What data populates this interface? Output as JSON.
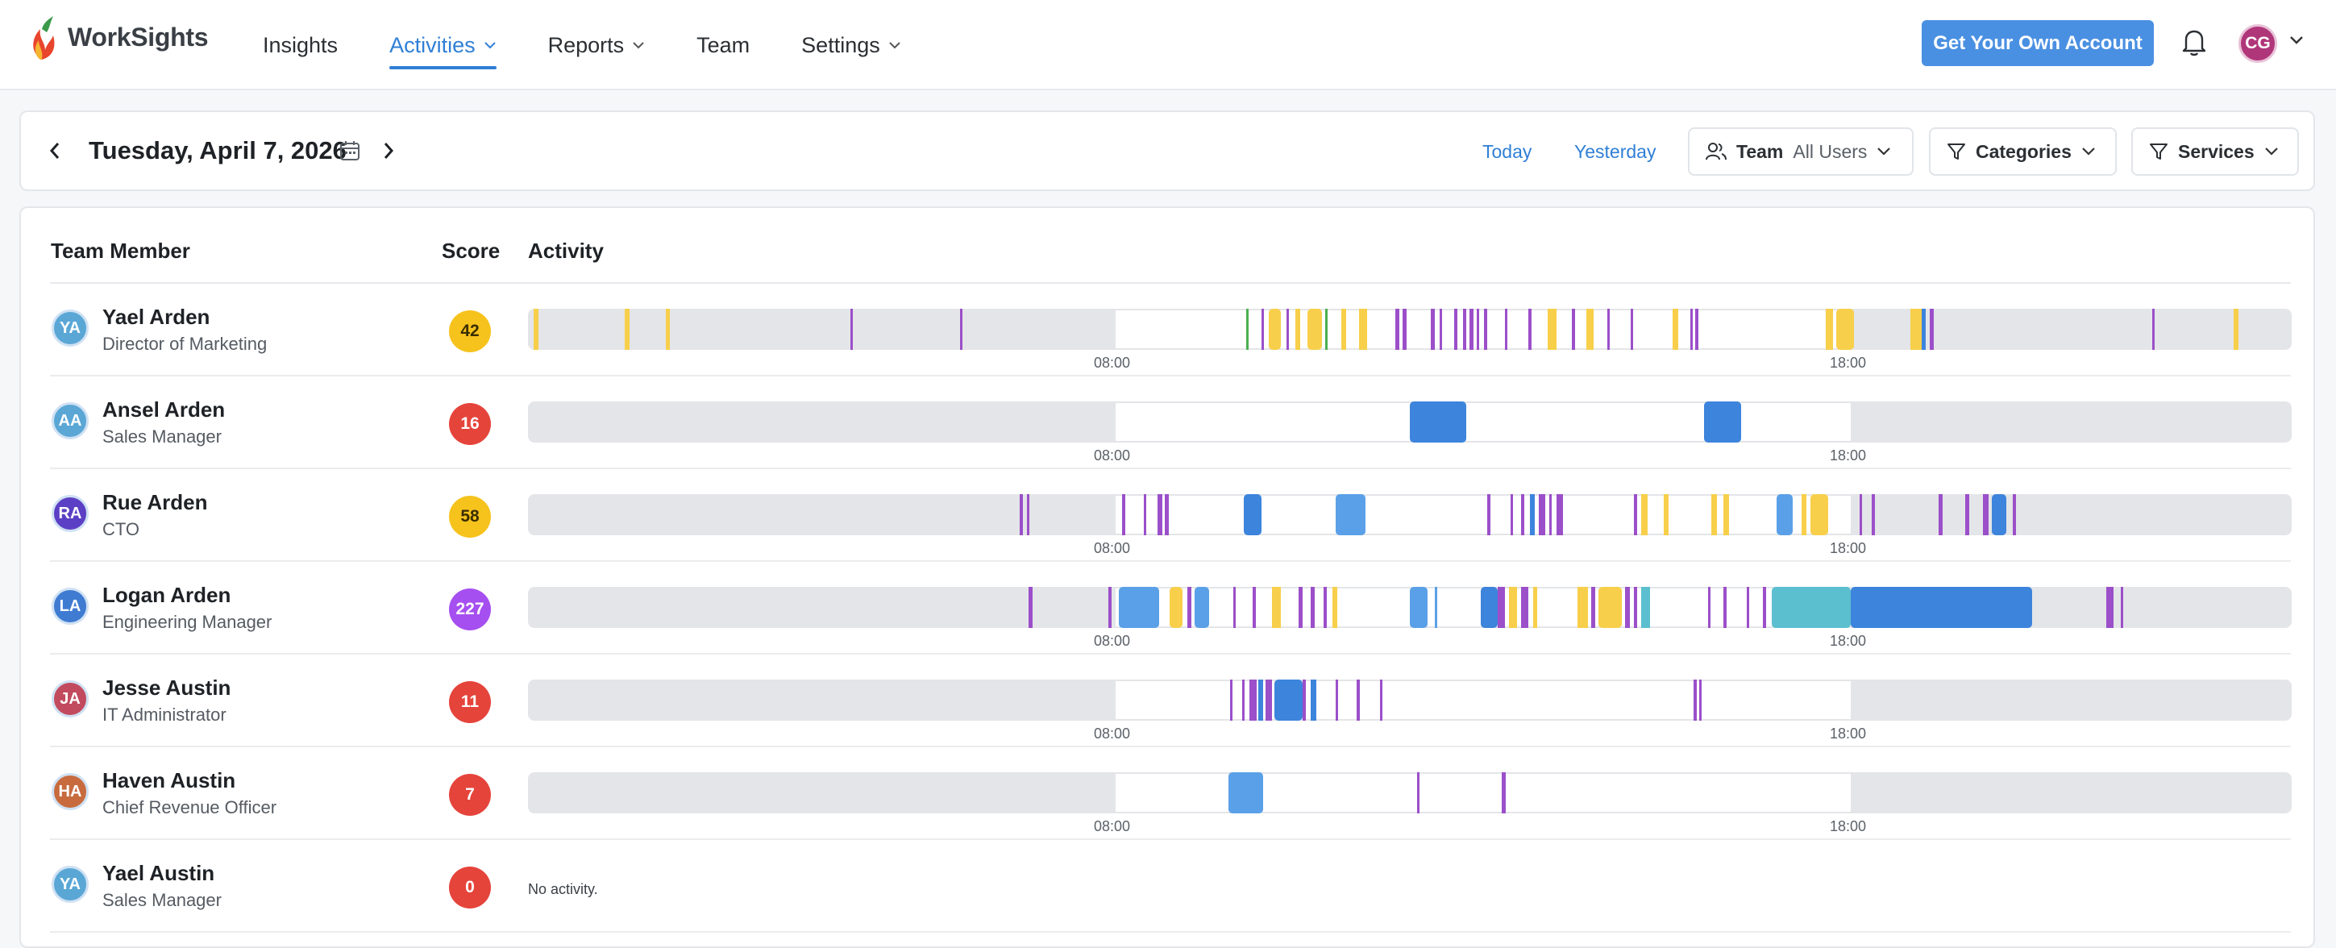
{
  "nav": {
    "brand": "WorkSights",
    "items": [
      {
        "label": "Insights",
        "active": false,
        "dropdown": false
      },
      {
        "label": "Activities",
        "active": true,
        "dropdown": true
      },
      {
        "label": "Reports",
        "active": false,
        "dropdown": true
      },
      {
        "label": "Team",
        "active": false,
        "dropdown": false
      },
      {
        "label": "Settings",
        "active": false,
        "dropdown": true
      }
    ],
    "cta": "Get Your Own Account",
    "user_initials": "CG"
  },
  "datebar": {
    "date": "Tuesday, April 7, 2026",
    "today": "Today",
    "yesterday": "Yesterday",
    "team_label": "Team",
    "team_value": "All Users",
    "categories": "Categories",
    "services": "Services"
  },
  "table": {
    "col_member": "Team Member",
    "col_score": "Score",
    "col_activity": "Activity",
    "tick_start": "08:00",
    "tick_end": "18:00",
    "no_activity": "No activity."
  },
  "colors": {
    "accent": "#2f7fd6",
    "purple": "#9b4fc9",
    "yellow": "#f7cf4a",
    "blue": "#3d84dc",
    "lightblue": "#5aa0e8",
    "teal": "#5bbfcf",
    "green": "#4caf50"
  },
  "members": [
    {
      "initials": "YA",
      "name": "Yael Arden",
      "role": "Director of Marketing",
      "score": "42",
      "score_color": "yellow",
      "avatar_color": "#5aa7d6",
      "segments": [
        [
          0.3,
          0.3,
          "yellow"
        ],
        [
          5.5,
          0.25,
          "yellow"
        ],
        [
          7.8,
          0.25,
          "yellow"
        ],
        [
          18.3,
          0.12,
          "purple"
        ],
        [
          24.5,
          0.12,
          "purple"
        ],
        [
          40.7,
          0.12,
          "green"
        ],
        [
          41.6,
          0.15,
          "purple"
        ],
        [
          42.0,
          0.7,
          "yellow"
        ],
        [
          43.0,
          0.15,
          "purple"
        ],
        [
          43.5,
          0.3,
          "yellow"
        ],
        [
          44.2,
          0.8,
          "yellow"
        ],
        [
          45.2,
          0.15,
          "green"
        ],
        [
          46.1,
          0.3,
          "yellow"
        ],
        [
          47.1,
          0.5,
          "yellow"
        ],
        [
          49.2,
          0.2,
          "purple"
        ],
        [
          49.6,
          0.2,
          "purple"
        ],
        [
          51.2,
          0.2,
          "purple"
        ],
        [
          51.7,
          0.15,
          "purple"
        ],
        [
          52.5,
          0.2,
          "purple"
        ],
        [
          53.0,
          0.2,
          "purple"
        ],
        [
          53.4,
          0.2,
          "purple"
        ],
        [
          53.8,
          0.15,
          "purple"
        ],
        [
          54.2,
          0.2,
          "purple"
        ],
        [
          55.4,
          0.15,
          "purple"
        ],
        [
          56.7,
          0.2,
          "purple"
        ],
        [
          57.8,
          0.5,
          "yellow"
        ],
        [
          59.2,
          0.15,
          "purple"
        ],
        [
          60.0,
          0.4,
          "yellow"
        ],
        [
          61.2,
          0.15,
          "purple"
        ],
        [
          62.5,
          0.15,
          "purple"
        ],
        [
          64.9,
          0.3,
          "yellow"
        ],
        [
          65.9,
          0.15,
          "purple"
        ],
        [
          66.2,
          0.15,
          "purple"
        ],
        [
          73.6,
          0.4,
          "yellow"
        ],
        [
          74.2,
          1.0,
          "yellow"
        ],
        [
          78.4,
          0.6,
          "yellow"
        ],
        [
          79.0,
          0.25,
          "blue"
        ],
        [
          79.5,
          0.2,
          "purple"
        ],
        [
          92.1,
          0.15,
          "purple"
        ],
        [
          96.7,
          0.3,
          "yellow"
        ]
      ]
    },
    {
      "initials": "AA",
      "name": "Ansel Arden",
      "role": "Sales Manager",
      "score": "16",
      "score_color": "red",
      "avatar_color": "#5aa7d6",
      "segments": [
        [
          50.0,
          3.2,
          "blue"
        ],
        [
          66.7,
          2.1,
          "blue"
        ]
      ]
    },
    {
      "initials": "RA",
      "name": "Rue Arden",
      "role": "CTO",
      "score": "58",
      "score_color": "yellow",
      "avatar_color": "#5b3fc4",
      "segments": [
        [
          27.9,
          0.15,
          "purple"
        ],
        [
          28.3,
          0.15,
          "purple"
        ],
        [
          33.7,
          0.15,
          "purple"
        ],
        [
          34.9,
          0.15,
          "purple"
        ],
        [
          35.7,
          0.25,
          "purple"
        ],
        [
          36.1,
          0.25,
          "purple"
        ],
        [
          40.6,
          1.0,
          "blue"
        ],
        [
          45.8,
          1.7,
          "lightblue"
        ],
        [
          54.4,
          0.15,
          "purple"
        ],
        [
          55.7,
          0.15,
          "purple"
        ],
        [
          56.3,
          0.2,
          "purple"
        ],
        [
          56.8,
          0.3,
          "blue"
        ],
        [
          57.3,
          0.4,
          "purple"
        ],
        [
          57.9,
          0.15,
          "purple"
        ],
        [
          58.3,
          0.4,
          "purple"
        ],
        [
          62.7,
          0.2,
          "purple"
        ],
        [
          63.1,
          0.4,
          "yellow"
        ],
        [
          64.4,
          0.25,
          "yellow"
        ],
        [
          67.1,
          0.3,
          "yellow"
        ],
        [
          67.8,
          0.3,
          "yellow"
        ],
        [
          70.8,
          0.9,
          "lightblue"
        ],
        [
          72.2,
          0.3,
          "yellow"
        ],
        [
          72.7,
          1.0,
          "yellow"
        ],
        [
          75.5,
          0.15,
          "purple"
        ],
        [
          76.2,
          0.15,
          "purple"
        ],
        [
          80.0,
          0.2,
          "purple"
        ],
        [
          81.5,
          0.2,
          "purple"
        ],
        [
          82.5,
          0.3,
          "purple"
        ],
        [
          83.0,
          0.8,
          "blue"
        ],
        [
          84.2,
          0.15,
          "purple"
        ]
      ]
    },
    {
      "initials": "LA",
      "name": "Logan Arden",
      "role": "Engineering Manager",
      "score": "227",
      "score_color": "purple",
      "avatar_color": "#3f7bd1",
      "segments": [
        [
          28.4,
          0.2,
          "purple"
        ],
        [
          32.9,
          0.2,
          "purple"
        ],
        [
          33.5,
          2.3,
          "lightblue"
        ],
        [
          36.4,
          0.7,
          "yellow"
        ],
        [
          37.4,
          0.2,
          "purple"
        ],
        [
          37.8,
          0.8,
          "lightblue"
        ],
        [
          40.0,
          0.15,
          "purple"
        ],
        [
          41.1,
          0.15,
          "purple"
        ],
        [
          42.2,
          0.5,
          "yellow"
        ],
        [
          43.7,
          0.2,
          "purple"
        ],
        [
          44.4,
          0.2,
          "purple"
        ],
        [
          45.1,
          0.2,
          "purple"
        ],
        [
          45.6,
          0.3,
          "yellow"
        ],
        [
          50.0,
          1.0,
          "lightblue"
        ],
        [
          51.4,
          0.15,
          "lightblue"
        ],
        [
          54.0,
          1.0,
          "blue"
        ],
        [
          55.0,
          0.4,
          "purple"
        ],
        [
          55.6,
          0.5,
          "yellow"
        ],
        [
          56.3,
          0.4,
          "purple"
        ],
        [
          57.0,
          0.2,
          "yellow"
        ],
        [
          59.5,
          0.6,
          "yellow"
        ],
        [
          60.3,
          0.2,
          "purple"
        ],
        [
          60.7,
          1.3,
          "yellow"
        ],
        [
          62.2,
          0.3,
          "purple"
        ],
        [
          62.7,
          0.2,
          "purple"
        ],
        [
          63.1,
          0.5,
          "teal"
        ],
        [
          66.9,
          0.15,
          "purple"
        ],
        [
          67.8,
          0.15,
          "purple"
        ],
        [
          69.1,
          0.15,
          "purple"
        ],
        [
          70.0,
          0.2,
          "purple"
        ],
        [
          70.5,
          4.5,
          "teal"
        ],
        [
          75.0,
          10.3,
          "blue"
        ],
        [
          89.5,
          0.4,
          "purple"
        ],
        [
          90.3,
          0.15,
          "purple"
        ]
      ]
    },
    {
      "initials": "JA",
      "name": "Jesse Austin",
      "role": "IT Administrator",
      "score": "11",
      "score_color": "red",
      "avatar_color": "#c24a5e",
      "segments": [
        [
          39.8,
          0.15,
          "purple"
        ],
        [
          40.5,
          0.15,
          "purple"
        ],
        [
          40.9,
          0.4,
          "purple"
        ],
        [
          41.4,
          0.3,
          "blue"
        ],
        [
          41.8,
          0.4,
          "purple"
        ],
        [
          42.3,
          1.6,
          "blue"
        ],
        [
          43.9,
          0.2,
          "purple"
        ],
        [
          44.4,
          0.3,
          "blue"
        ],
        [
          45.8,
          0.15,
          "purple"
        ],
        [
          47.0,
          0.15,
          "purple"
        ],
        [
          48.3,
          0.15,
          "purple"
        ],
        [
          66.1,
          0.15,
          "purple"
        ],
        [
          66.4,
          0.15,
          "purple"
        ]
      ]
    },
    {
      "initials": "HA",
      "name": "Haven Austin",
      "role": "Chief Revenue Officer",
      "score": "7",
      "score_color": "red",
      "avatar_color": "#c76b3e",
      "segments": [
        [
          39.7,
          2.0,
          "lightblue"
        ],
        [
          50.4,
          0.15,
          "purple"
        ],
        [
          55.2,
          0.25,
          "purple"
        ]
      ]
    },
    {
      "initials": "YA",
      "name": "Yael Austin",
      "role": "Sales Manager",
      "score": "0",
      "score_color": "red",
      "avatar_color": "#5aa7d6",
      "segments": []
    }
  ]
}
